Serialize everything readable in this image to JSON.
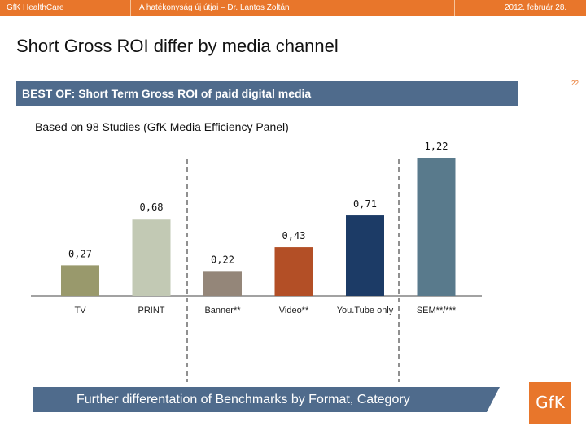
{
  "header": {
    "company": "GfK HealthCare",
    "presentation": "A hatékonyság új útjai – Dr. Lantos Zoltán",
    "date": "2012. február 28."
  },
  "slide": {
    "title": "Short Gross ROI differ by media channel",
    "banner": "BEST OF: Short Term Gross ROI of paid digital media",
    "page_number": "22",
    "subtitle": "Based on 98 Studies (GfK Media Efficiency Panel)",
    "footer": "Further differentation of Benchmarks by Format, Category",
    "logo": "GfK"
  },
  "chart_data": {
    "type": "bar",
    "title": "",
    "xlabel": "",
    "ylabel": "",
    "ylim": [
      0,
      1.3
    ],
    "categories": [
      "TV",
      "PRINT",
      "Banner**",
      "Video**",
      "You.Tube only",
      "SEM**/***"
    ],
    "values": [
      0.27,
      0.68,
      0.22,
      0.43,
      0.71,
      1.22
    ],
    "labels": [
      "0,27",
      "0,68",
      "0,22",
      "0,43",
      "0,71",
      "1,22"
    ],
    "colors": [
      "#99996c",
      "#c2c9b4",
      "#948679",
      "#b34f26",
      "#1c3b66",
      "#597a8c"
    ]
  },
  "colors": {
    "accent": "#e8762b",
    "banner": "#4f6b8c"
  }
}
